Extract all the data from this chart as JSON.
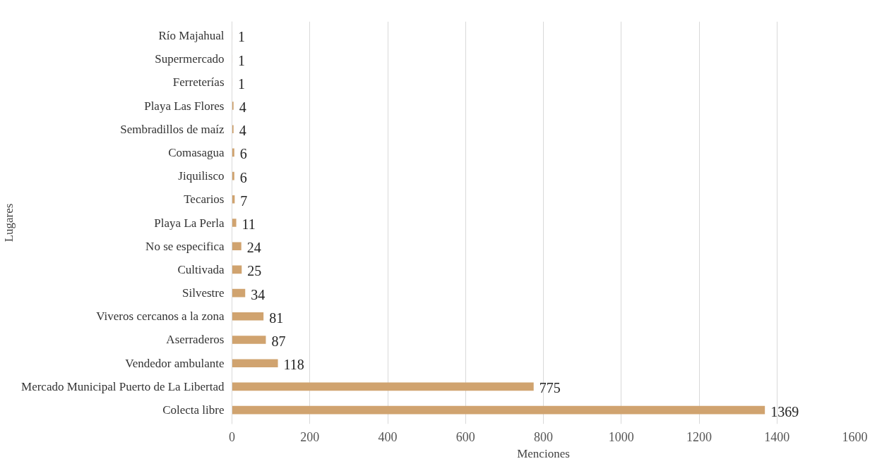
{
  "chart_data": {
    "type": "bar",
    "orientation": "horizontal",
    "xlabel": "Menciones",
    "ylabel": "Lugares",
    "categories": [
      "Río Majahual",
      "Supermercado",
      "Ferreterías",
      "Playa Las Flores",
      "Sembradillos de maíz",
      "Comasagua",
      "Jiquilisco",
      "Tecarios",
      "Playa La Perla",
      "No se especifica",
      "Cultivada",
      "Silvestre",
      "Viveros cercanos a la zona",
      "Aserraderos",
      "Vendedor ambulante",
      "Mercado Municipal Puerto de La Libertad",
      "Colecta libre"
    ],
    "values": [
      1,
      1,
      1,
      4,
      4,
      6,
      6,
      7,
      11,
      24,
      25,
      34,
      81,
      87,
      118,
      775,
      1369
    ],
    "color": "#d0a36f",
    "xlim": [
      0,
      1600
    ],
    "xticks": [
      0,
      200,
      400,
      600,
      800,
      1000,
      1200,
      1400,
      1600
    ],
    "grid": "x",
    "data_labels": true
  }
}
